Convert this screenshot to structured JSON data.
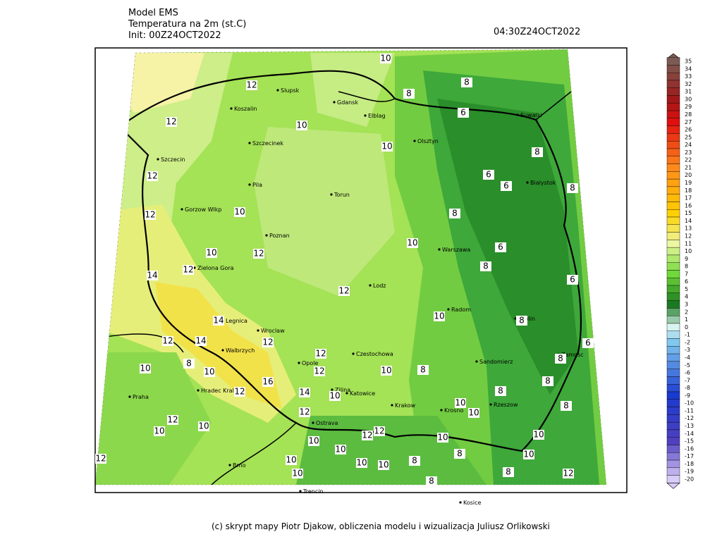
{
  "header": {
    "model": "Model EMS",
    "variable": "Temperatura na 2m (st.C)",
    "init": "Init: 00Z24OCT2022",
    "valid": "04:30Z24OCT2022"
  },
  "map": {
    "cities": [
      "Slupsk",
      "Koszalin",
      "Gdansk",
      "Elblag",
      "Szczecinek",
      "Olsztyn",
      "Szczecin",
      "Suwalki",
      "Pila",
      "Torun",
      "Bialystok",
      "Gorzow Wlkp",
      "Poznan",
      "Warszawa",
      "Zielona Gora",
      "Lodz",
      "Radom",
      "Lublin",
      "Legnica",
      "Wroclaw",
      "Walbrzych",
      "Opole",
      "Czestochowa",
      "Zamosc",
      "Sandomierz",
      "Hradec Kralove",
      "Katowice",
      "Zilina",
      "Krakow",
      "Rzeszow",
      "Krosno",
      "Praha",
      "Ostrava",
      "Brno",
      "Trencin",
      "Kosice"
    ],
    "contour_labels": [
      "10",
      "12",
      "8",
      "8",
      "6",
      "12",
      "10",
      "10",
      "8",
      "6",
      "12",
      "6",
      "8",
      "12",
      "10",
      "8",
      "10",
      "6",
      "10",
      "12",
      "8",
      "12",
      "14",
      "6",
      "12",
      "10",
      "14",
      "8",
      "12",
      "14",
      "12",
      "6",
      "12",
      "8",
      "10",
      "10",
      "12",
      "10",
      "8",
      "8",
      "16",
      "12",
      "8",
      "14",
      "10",
      "8",
      "10",
      "10",
      "8",
      "12",
      "12",
      "10",
      "10",
      "12",
      "12",
      "10",
      "10",
      "10",
      "10",
      "8",
      "10",
      "12",
      "10",
      "10",
      "10",
      "8",
      "8",
      "12",
      "10",
      "8"
    ]
  },
  "colorbar": {
    "labels": [
      "35",
      "34",
      "33",
      "32",
      "31",
      "30",
      "29",
      "28",
      "27",
      "26",
      "25",
      "24",
      "23",
      "22",
      "21",
      "20",
      "19",
      "18",
      "17",
      "16",
      "15",
      "14",
      "13",
      "12",
      "11",
      "10",
      "9",
      "8",
      "7",
      "6",
      "5",
      "4",
      "3",
      "2",
      "1",
      "0",
      "-1",
      "-2",
      "-3",
      "-4",
      "-5",
      "-6",
      "-7",
      "-8",
      "-9",
      "-10",
      "-11",
      "-12",
      "-13",
      "-14",
      "-15",
      "-16",
      "-17",
      "-18",
      "-19",
      "-20"
    ]
  },
  "footer": "(c) skrypt mapy Piotr Djakow, obliczenia modelu i wizualizacja Juliusz Orlikowski"
}
